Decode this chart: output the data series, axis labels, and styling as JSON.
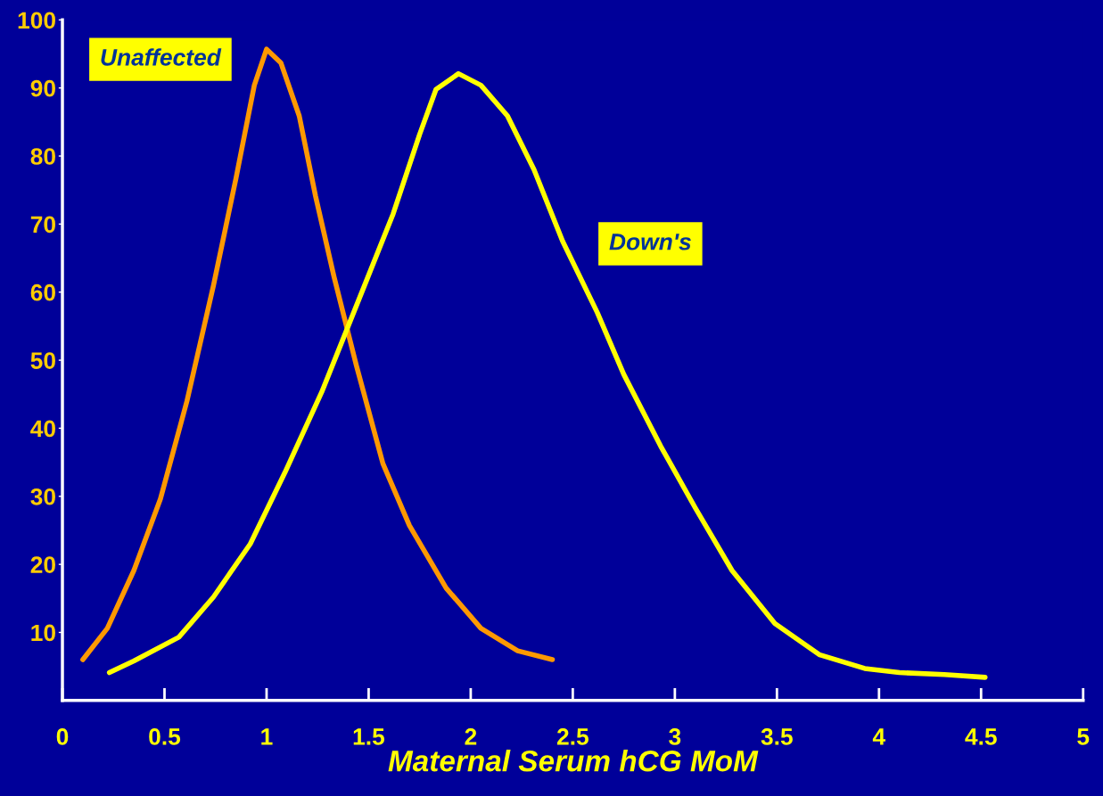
{
  "chart_data": {
    "type": "line",
    "xlabel": "Maternal Serum hCG MoM",
    "xlim": [
      0,
      5
    ],
    "xticks": [
      0,
      0.5,
      1,
      1.5,
      2,
      2.5,
      3,
      3.5,
      4,
      4.5,
      5
    ],
    "ylim": [
      0,
      100
    ],
    "yticks": [
      10,
      20,
      30,
      40,
      50,
      60,
      70,
      80,
      90,
      100
    ],
    "series": [
      {
        "name": "Unaffected",
        "color": "#ff9900",
        "x": [
          0.1,
          0.22,
          0.35,
          0.48,
          0.61,
          0.74,
          0.85,
          0.94,
          1.0,
          1.07,
          1.16,
          1.24,
          1.33,
          1.44,
          1.57,
          1.7,
          1.88,
          2.05,
          2.23,
          2.4
        ],
        "values": [
          6,
          10.6,
          19.1,
          29.6,
          44,
          61,
          76.7,
          90.4,
          95.7,
          93.7,
          85.9,
          74.1,
          62.3,
          49.2,
          34.8,
          25.7,
          16.5,
          10.6,
          7.3,
          6
        ]
      },
      {
        "name": "Down's",
        "color": "#ffff00",
        "x": [
          0.23,
          0.35,
          0.57,
          0.74,
          0.92,
          1.09,
          1.27,
          1.48,
          1.62,
          1.75,
          1.83,
          1.94,
          2.05,
          2.18,
          2.31,
          2.45,
          2.62,
          2.75,
          2.93,
          3.1,
          3.28,
          3.49,
          3.71,
          3.93,
          4.1,
          4.32,
          4.52
        ],
        "values": [
          4.1,
          5.8,
          9.3,
          15.2,
          23,
          33.5,
          45.3,
          61,
          71.5,
          83.2,
          89.8,
          92.1,
          90.4,
          85.9,
          78,
          67.5,
          57,
          47.9,
          37.4,
          28.3,
          19.1,
          11.3,
          6.7,
          4.7,
          4.1,
          3.8,
          3.4
        ]
      }
    ]
  }
}
